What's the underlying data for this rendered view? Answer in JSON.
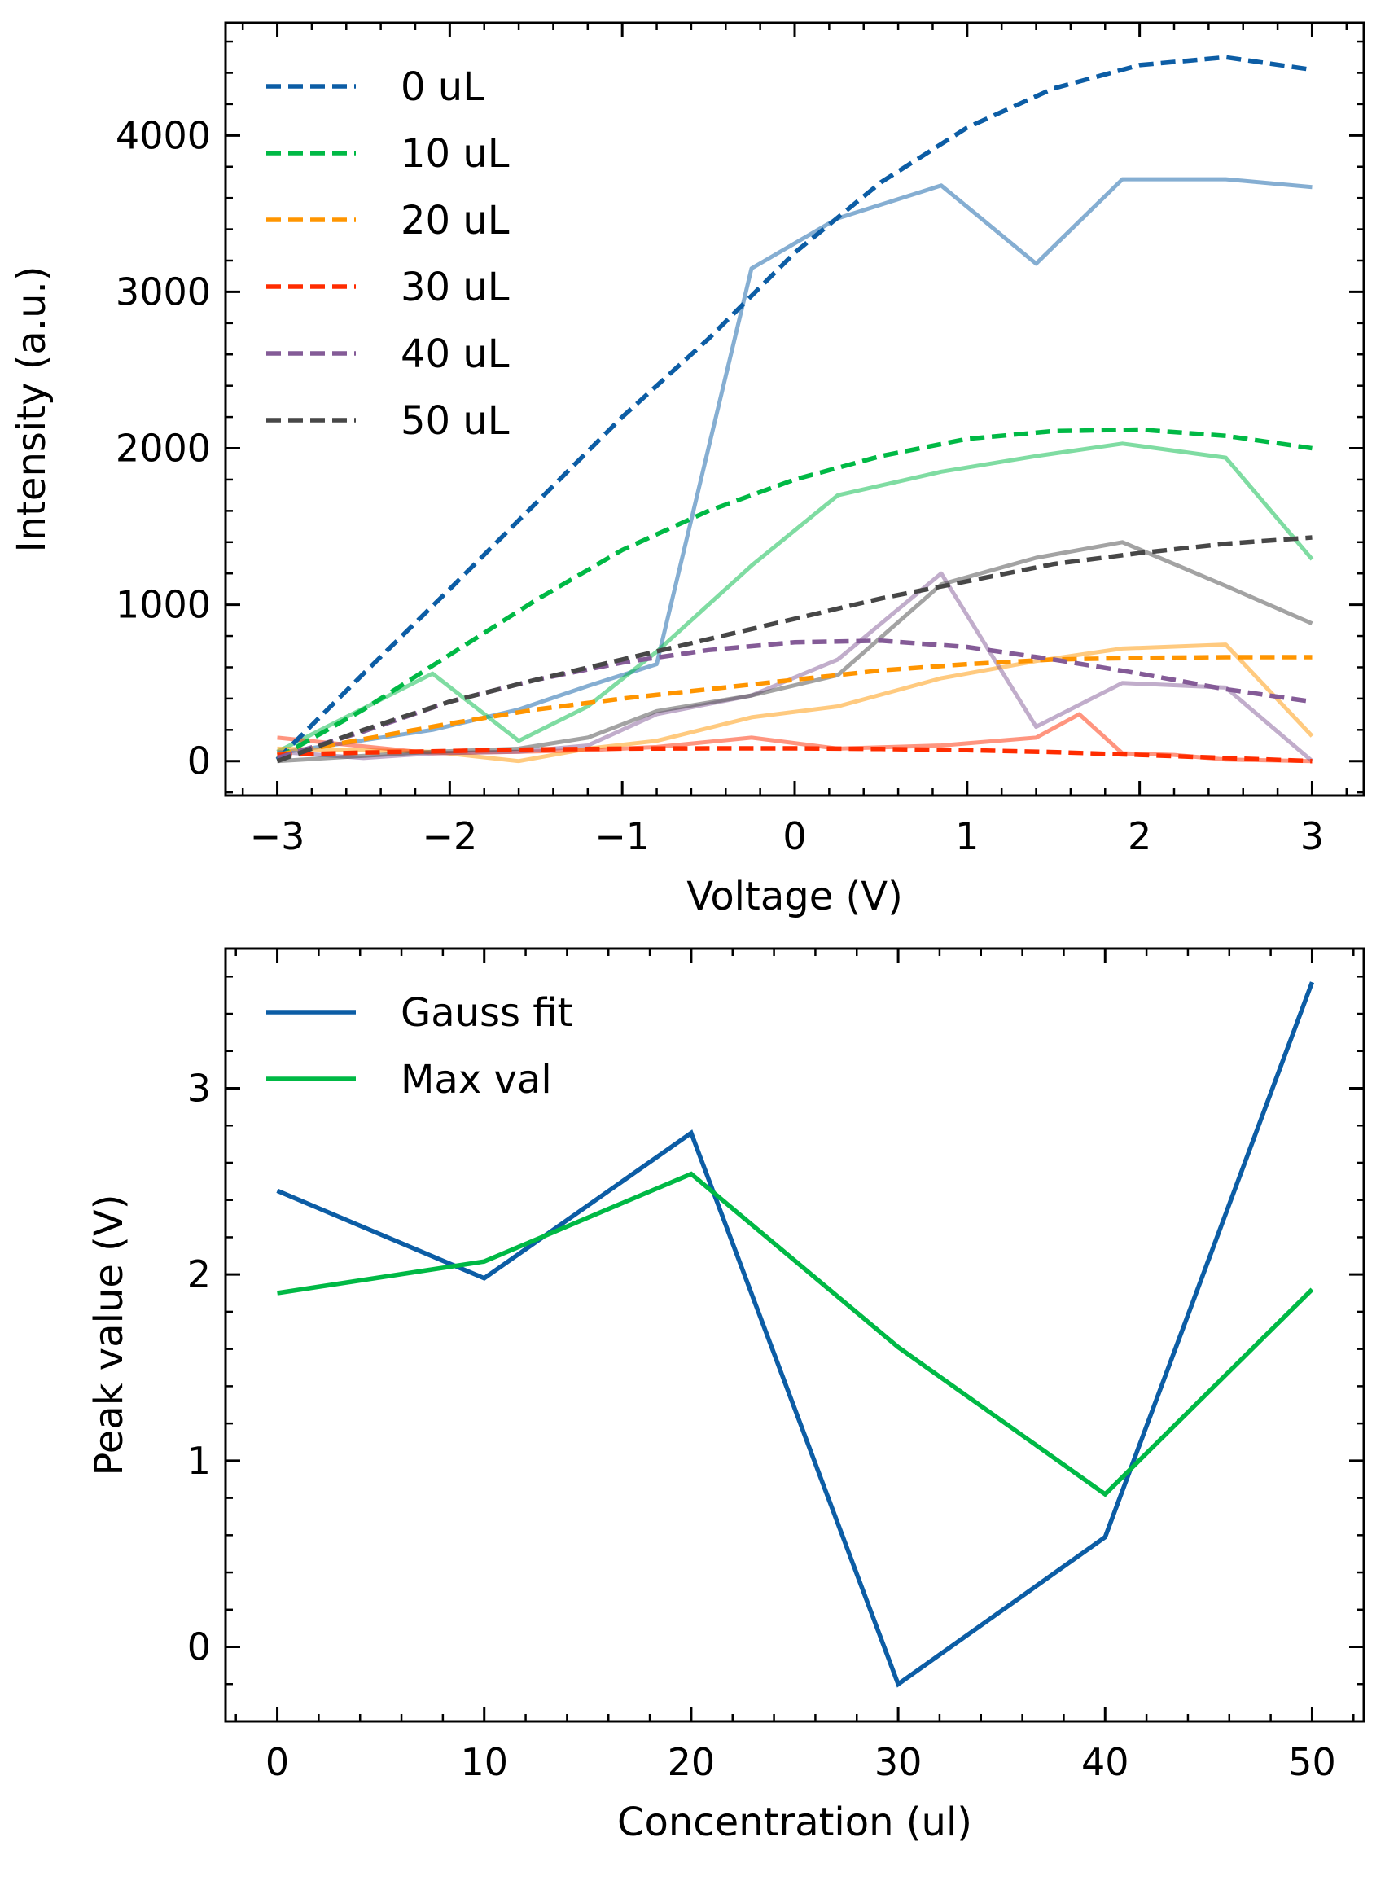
{
  "chart_data": [
    {
      "type": "line",
      "xlabel": "Voltage (V)",
      "ylabel": "Intensity (a.u.)",
      "xlim": [
        -3.3,
        3.3
      ],
      "ylim": [
        -220,
        4720
      ],
      "xticks": [
        -3,
        -2,
        -1,
        0,
        1,
        2,
        3
      ],
      "xtick_labels": [
        "−3",
        "−2",
        "−1",
        "0",
        "1",
        "2",
        "3"
      ],
      "yticks": [
        0,
        1000,
        2000,
        3000,
        4000
      ],
      "ytick_labels": [
        "0",
        "1000",
        "2000",
        "3000",
        "4000"
      ],
      "legend_position": "top-left",
      "fit_x": [
        -3,
        -2.5,
        -2,
        -1.5,
        -1,
        -0.5,
        0,
        0.5,
        1,
        1.5,
        2,
        2.5,
        3
      ],
      "series": [
        {
          "name": "0 uL",
          "color": "#0C5DA5",
          "fit": [
            10,
            560,
            1100,
            1650,
            2200,
            2700,
            3250,
            3700,
            4050,
            4300,
            4450,
            4500,
            4420
          ],
          "raw_x": [
            -3,
            -2.1,
            -1.6,
            -1.2,
            -0.8,
            -0.25,
            0.25,
            0.85,
            1.4,
            1.9,
            2.5,
            3
          ],
          "raw_y": [
            50,
            200,
            330,
            480,
            620,
            3150,
            3470,
            3680,
            3180,
            3720,
            3720,
            3670
          ]
        },
        {
          "name": "10 uL",
          "color": "#00B945",
          "fit": [
            20,
            330,
            680,
            1030,
            1350,
            1600,
            1800,
            1950,
            2060,
            2110,
            2120,
            2080,
            2000
          ],
          "raw_x": [
            -3,
            -2.1,
            -1.6,
            -1.2,
            -0.8,
            -0.25,
            0.25,
            0.85,
            1.4,
            1.9,
            2.5,
            3
          ],
          "raw_y": [
            60,
            560,
            130,
            350,
            700,
            1250,
            1700,
            1850,
            1950,
            2030,
            1940,
            1290
          ]
        },
        {
          "name": "20 uL",
          "color": "#FF9500",
          "fit": [
            40,
            140,
            240,
            330,
            400,
            460,
            520,
            580,
            620,
            650,
            660,
            665,
            665
          ],
          "raw_x": [
            -3,
            -2.1,
            -1.6,
            -1.2,
            -0.8,
            -0.25,
            0.25,
            0.85,
            1.4,
            1.9,
            2.5,
            3
          ],
          "raw_y": [
            80,
            60,
            0,
            80,
            130,
            280,
            350,
            530,
            640,
            720,
            745,
            160
          ]
        },
        {
          "name": "30 uL",
          "color": "#FF2C00",
          "fit": [
            40,
            55,
            65,
            75,
            80,
            82,
            82,
            78,
            70,
            58,
            40,
            20,
            0
          ],
          "raw_x": [
            -3,
            -2.1,
            -1.6,
            -1.2,
            -0.8,
            -0.25,
            0.25,
            0.85,
            1.4,
            1.65,
            1.9,
            2.2,
            2.5,
            3
          ],
          "raw_y": [
            150,
            50,
            60,
            70,
            90,
            150,
            80,
            100,
            150,
            300,
            50,
            40,
            10,
            0
          ]
        },
        {
          "name": "40 uL",
          "color": "#845B97",
          "fit": [
            20,
            190,
            380,
            520,
            630,
            710,
            760,
            770,
            730,
            650,
            560,
            460,
            380
          ],
          "raw_x": [
            -3,
            -2.5,
            -2.1,
            -1.6,
            -1.2,
            -0.8,
            -0.25,
            0.25,
            0.85,
            1.4,
            1.9,
            2.5,
            3
          ],
          "raw_y": [
            60,
            20,
            50,
            60,
            100,
            300,
            420,
            650,
            1200,
            220,
            500,
            470,
            0
          ]
        },
        {
          "name": "50 uL",
          "color": "#474747",
          "fit": [
            0,
            200,
            380,
            520,
            650,
            780,
            910,
            1040,
            1150,
            1260,
            1330,
            1390,
            1430
          ],
          "raw_x": [
            -3,
            -2.1,
            -1.6,
            -1.2,
            -0.8,
            -0.25,
            0.25,
            0.85,
            1.4,
            1.9,
            2.5,
            3
          ],
          "raw_y": [
            0,
            60,
            80,
            150,
            320,
            420,
            550,
            1130,
            1300,
            1400,
            1120,
            880
          ]
        }
      ]
    },
    {
      "type": "line",
      "xlabel": "Concentration (ul)",
      "ylabel": "Peak value (V)",
      "xlim": [
        -2.5,
        52.5
      ],
      "ylim": [
        -0.4,
        3.75
      ],
      "xticks": [
        0,
        10,
        20,
        30,
        40,
        50
      ],
      "xtick_labels": [
        "0",
        "10",
        "20",
        "30",
        "40",
        "50"
      ],
      "yticks": [
        0,
        1,
        2,
        3
      ],
      "ytick_labels": [
        "0",
        "1",
        "2",
        "3"
      ],
      "legend_position": "top-left",
      "x": [
        0,
        10,
        20,
        30,
        40,
        50
      ],
      "series": [
        {
          "name": "Gauss fit",
          "color": "#0C5DA5",
          "values": [
            2.45,
            1.98,
            2.76,
            -0.2,
            0.59,
            3.57
          ]
        },
        {
          "name": "Max val",
          "color": "#00B945",
          "values": [
            1.9,
            2.07,
            2.54,
            1.61,
            0.82,
            1.92
          ]
        }
      ]
    }
  ]
}
